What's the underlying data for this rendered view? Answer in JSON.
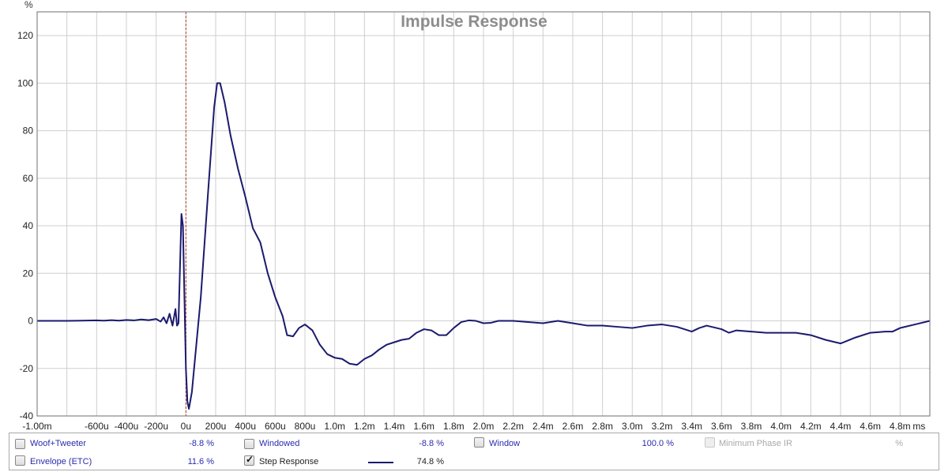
{
  "chart_data": {
    "type": "line",
    "title": "Impulse Response",
    "ylabel": "%",
    "xlim": [
      -0.001,
      0.005
    ],
    "ylim": [
      -40,
      130
    ],
    "grid": true,
    "x_ticks": [
      -0.001,
      -0.0008,
      -0.0006,
      -0.0004,
      -0.0002,
      0,
      0.0002,
      0.0004,
      0.0006,
      0.0008,
      0.001,
      0.0012,
      0.0014,
      0.0016,
      0.0018,
      0.002,
      0.0022,
      0.0024,
      0.0026,
      0.0028,
      0.003,
      0.0032,
      0.0034,
      0.0036,
      0.0038,
      0.004,
      0.0042,
      0.0044,
      0.0046,
      0.0048
    ],
    "x_tick_labels": [
      "-1.00m",
      "",
      "-600u",
      "-400u",
      "-200u",
      "0u",
      "200u",
      "400u",
      "600u",
      "800u",
      "1.0m",
      "1.2m",
      "1.4m",
      "1.6m",
      "1.8m",
      "2.0m",
      "2.2m",
      "2.4m",
      "2.6m",
      "2.8m",
      "3.0m",
      "3.2m",
      "3.4m",
      "3.6m",
      "3.8m",
      "4.0m",
      "4.2m",
      "4.4m",
      "4.6m",
      "4.8m"
    ],
    "x_last_label": "ms",
    "y_ticks": [
      -40,
      -20,
      0,
      20,
      40,
      60,
      80,
      100,
      120
    ],
    "y_tick_labels": [
      "-40",
      "-20",
      "0",
      "20",
      "40",
      "60",
      "80",
      "100",
      "120"
    ],
    "marker_x": 0,
    "series": [
      {
        "name": "Step Response",
        "color": "#1a1a6e",
        "points": [
          [
            -0.001,
            0
          ],
          [
            -0.0009,
            0
          ],
          [
            -0.0008,
            0
          ],
          [
            -0.0007,
            0.1
          ],
          [
            -0.0006,
            0.2
          ],
          [
            -0.00055,
            0.1
          ],
          [
            -0.0005,
            0.3
          ],
          [
            -0.00045,
            0.1
          ],
          [
            -0.0004,
            0.4
          ],
          [
            -0.00035,
            0.2
          ],
          [
            -0.0003,
            0.6
          ],
          [
            -0.00025,
            0.3
          ],
          [
            -0.0002,
            0.8
          ],
          [
            -0.00017,
            -0.3
          ],
          [
            -0.00015,
            1.5
          ],
          [
            -0.00013,
            -1
          ],
          [
            -0.00011,
            3
          ],
          [
            -9e-05,
            -2
          ],
          [
            -7e-05,
            5
          ],
          [
            -6e-05,
            -2
          ],
          [
            -5e-05,
            -1
          ],
          [
            -4e-05,
            22
          ],
          [
            -3e-05,
            45
          ],
          [
            -2e-05,
            40
          ],
          [
            -1e-05,
            10
          ],
          [
            0,
            -20
          ],
          [
            1e-05,
            -34
          ],
          [
            2e-05,
            -37
          ],
          [
            4e-05,
            -30
          ],
          [
            0.0001,
            10
          ],
          [
            0.00015,
            55
          ],
          [
            0.00019,
            90
          ],
          [
            0.00021,
            100
          ],
          [
            0.00023,
            100
          ],
          [
            0.00026,
            92
          ],
          [
            0.0003,
            78
          ],
          [
            0.00035,
            64
          ],
          [
            0.0004,
            52
          ],
          [
            0.00045,
            39
          ],
          [
            0.0005,
            33
          ],
          [
            0.00055,
            20
          ],
          [
            0.0006,
            10
          ],
          [
            0.00065,
            2
          ],
          [
            0.00068,
            -6
          ],
          [
            0.00072,
            -6.5
          ],
          [
            0.00076,
            -3
          ],
          [
            0.0008,
            -1.5
          ],
          [
            0.00085,
            -4
          ],
          [
            0.0009,
            -10
          ],
          [
            0.00095,
            -14
          ],
          [
            0.001,
            -15.5
          ],
          [
            0.00105,
            -16
          ],
          [
            0.0011,
            -18
          ],
          [
            0.00115,
            -18.5
          ],
          [
            0.0012,
            -16
          ],
          [
            0.00125,
            -14.5
          ],
          [
            0.0013,
            -12
          ],
          [
            0.00135,
            -10
          ],
          [
            0.0014,
            -9
          ],
          [
            0.00145,
            -8
          ],
          [
            0.0015,
            -7.5
          ],
          [
            0.00155,
            -5
          ],
          [
            0.0016,
            -3.5
          ],
          [
            0.00165,
            -4
          ],
          [
            0.0017,
            -6
          ],
          [
            0.00175,
            -6
          ],
          [
            0.0018,
            -3
          ],
          [
            0.00185,
            -0.5
          ],
          [
            0.0019,
            0.2
          ],
          [
            0.00195,
            0
          ],
          [
            0.002,
            -1
          ],
          [
            0.00205,
            -0.8
          ],
          [
            0.0021,
            0
          ],
          [
            0.0022,
            0
          ],
          [
            0.0023,
            -0.5
          ],
          [
            0.0024,
            -1
          ],
          [
            0.0025,
            0
          ],
          [
            0.0026,
            -1
          ],
          [
            0.0027,
            -2
          ],
          [
            0.0028,
            -2
          ],
          [
            0.0029,
            -2.5
          ],
          [
            0.003,
            -3
          ],
          [
            0.0031,
            -2
          ],
          [
            0.0032,
            -1.5
          ],
          [
            0.0033,
            -2.5
          ],
          [
            0.0034,
            -4.5
          ],
          [
            0.00345,
            -3
          ],
          [
            0.0035,
            -2
          ],
          [
            0.0036,
            -3.5
          ],
          [
            0.00365,
            -5
          ],
          [
            0.0037,
            -4
          ],
          [
            0.0038,
            -4.5
          ],
          [
            0.0039,
            -5
          ],
          [
            0.004,
            -5
          ],
          [
            0.0041,
            -5
          ],
          [
            0.0042,
            -6
          ],
          [
            0.0043,
            -8
          ],
          [
            0.0044,
            -9.5
          ],
          [
            0.0045,
            -7
          ],
          [
            0.0046,
            -5
          ],
          [
            0.0047,
            -4.5
          ],
          [
            0.00475,
            -4.5
          ],
          [
            0.0048,
            -3
          ],
          [
            0.0049,
            -1.5
          ],
          [
            0.005,
            0
          ]
        ]
      }
    ]
  },
  "legend": {
    "items": [
      {
        "label": "Woof+Tweeter",
        "value": "-8.8 %",
        "checked": false
      },
      {
        "label": "Windowed",
        "value": "-8.8 %",
        "checked": false
      },
      {
        "label": "Window",
        "value": "100.0 %",
        "checked": false
      },
      {
        "label": "Minimum Phase IR",
        "value": "%",
        "checked": false,
        "disabled": true
      },
      {
        "label": "Envelope (ETC)",
        "value": "11.6 %",
        "checked": false
      },
      {
        "label": "Step Response",
        "value": "74.8 %",
        "checked": true
      }
    ]
  }
}
